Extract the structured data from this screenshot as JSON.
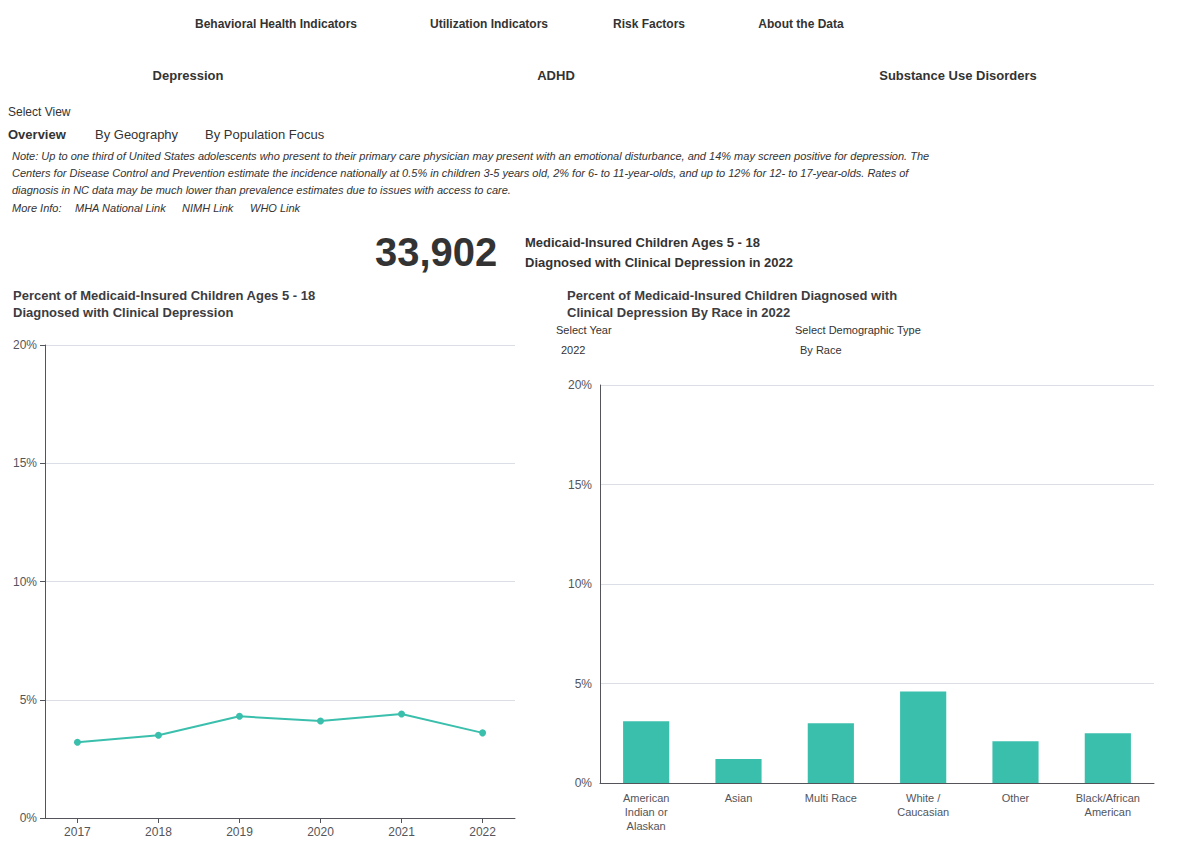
{
  "chart_data": [
    {
      "type": "line",
      "title": "Percent of Medicaid-Insured Children Ages 5 - 18\nDiagnosed with Clinical Depression",
      "annotations": [
        "Behavioral Health Indicators",
        "Utilization Indicators",
        "Risk Factors",
        "About the Data",
        "Depression",
        "ADHD",
        "Substance Use Disorders",
        "Select View",
        "Overview",
        "By Geography",
        "By Population Focus",
        "Note: Up to one third of United States adolescents who present to their primary care physician may present with an emotional disturbance, and 14% may screen positive for depression. The",
        "Centers for Disease Control and Prevention estimate the incidence nationally at 0.5% in children 3-5 years old, 2% for 6- to 11-year-olds, and up to 12% for 12- to 17-year-olds. Rates of",
        "diagnosis in NC data may be much lower than prevalence estimates due to issues with access to care.",
        "More Info: ",
        "MHA National Link",
        "NIMH Link",
        "WHO Link",
        "33,902",
        "Medicaid-Insured Children Ages 5 - 18",
        "Diagnosed with Clinical Depression in 2022"
      ],
      "x": [
        2017,
        2018,
        2019,
        2020,
        2021,
        2022
      ],
      "values": [
        3.2,
        3.5,
        4.3,
        4.1,
        4.4,
        3.6
      ],
      "color": "#3bbfad",
      "marker": "circle",
      "xlim": [
        2016.6,
        2022.4
      ],
      "xticks": [
        2017,
        2018,
        2019,
        2020,
        2021,
        2022
      ],
      "ylim": [
        0,
        20
      ],
      "yticks": [
        {
          "value": 0,
          "label": "0%"
        },
        {
          "value": 5,
          "label": "5%"
        },
        {
          "value": 10,
          "label": "10%"
        },
        {
          "value": 15,
          "label": "15%"
        },
        {
          "value": 20,
          "label": "20%"
        }
      ],
      "grid": true
    },
    {
      "type": "bar",
      "title": "Percent of Medicaid-Insured Children Diagnosed with\nClinical Depression By Race in 2022",
      "annotations": [
        "Select Year",
        "2022",
        "Select Demographic Type",
        "By Race"
      ],
      "categories": [
        "American\nIndian or\nAlaskan",
        "Asian",
        "Multi Race",
        "White /\nCaucasian",
        "Other",
        "Black/African\nAmerican"
      ],
      "values": [
        3.1,
        1.2,
        3.0,
        4.6,
        2.1,
        2.5
      ],
      "color": "#3bbfad",
      "ylim": [
        0,
        20
      ],
      "yticks": [
        {
          "value": 0,
          "label": "0%"
        },
        {
          "value": 5,
          "label": "5%"
        },
        {
          "value": 10,
          "label": "10%"
        },
        {
          "value": 15,
          "label": "15%"
        },
        {
          "value": 20,
          "label": "20%"
        }
      ],
      "grid": true
    }
  ]
}
